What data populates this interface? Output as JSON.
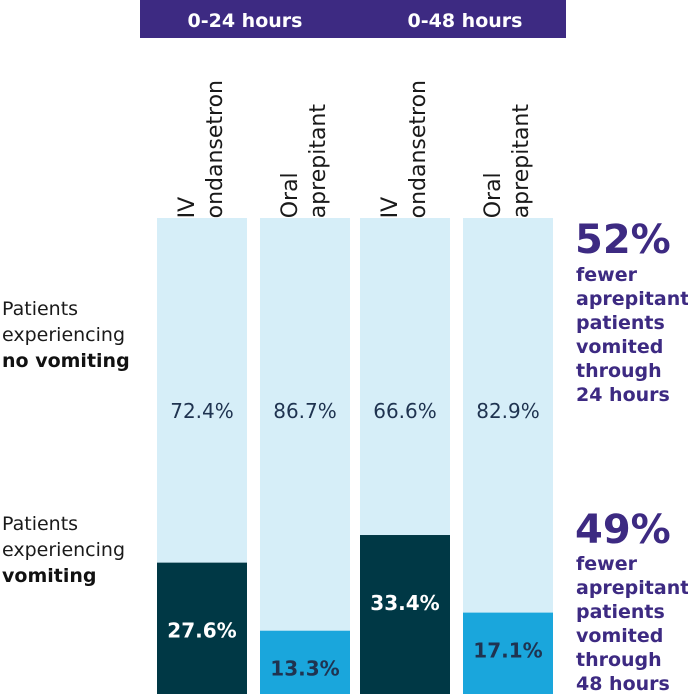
{
  "header": {
    "periods": [
      "0-24 hours",
      "0-48 hours"
    ]
  },
  "columns": [
    "IV\nondansetron",
    "Oral\naprepitant",
    "IV\nondansetron",
    "Oral\naprepitant"
  ],
  "rows": {
    "no_vomiting": {
      "line1": "Patients",
      "line2": "experiencing",
      "bold": "no vomiting"
    },
    "vomiting": {
      "line1": "Patients",
      "line2": "experiencing",
      "bold": "vomiting"
    }
  },
  "callouts": [
    {
      "value": "52%",
      "text": "fewer\naprepitant\npatients\nvomited\nthrough\n24 hours"
    },
    {
      "value": "49%",
      "text": "fewer\naprepitant\npatients\nvomited\nthrough\n48 hours"
    }
  ],
  "colors": {
    "no_vomiting": "#d6eef8",
    "vomiting_iv": "#003845",
    "vomiting_oral": "#1aa6dc",
    "accent": "#3d2a82",
    "label_dark": "#1f3350"
  },
  "chart_data": {
    "type": "bar",
    "stacked": true,
    "categories": [
      "IV ondansetron (0-24 hours)",
      "Oral aprepitant (0-24 hours)",
      "IV ondansetron (0-48 hours)",
      "Oral aprepitant (0-48 hours)"
    ],
    "series": [
      {
        "name": "Patients experiencing vomiting",
        "values": [
          27.6,
          13.3,
          33.4,
          17.1
        ],
        "labels": [
          "27.6%",
          "13.3%",
          "33.4%",
          "17.1%"
        ]
      },
      {
        "name": "Patients experiencing no vomiting",
        "values": [
          72.4,
          86.7,
          66.6,
          82.9
        ],
        "labels": [
          "72.4%",
          "86.7%",
          "66.6%",
          "82.9%"
        ]
      }
    ],
    "ylim": [
      0,
      100
    ]
  }
}
